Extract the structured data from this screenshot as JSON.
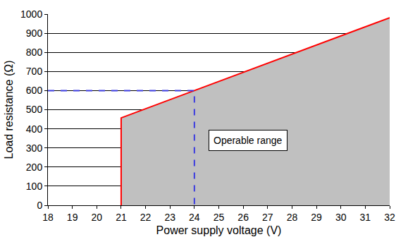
{
  "chart_data": {
    "type": "area",
    "x_label": "Power supply voltage (V)",
    "y_label": "Load resistance (Ω)",
    "x": [
      21,
      21,
      24,
      32
    ],
    "values": [
      0,
      457,
      600,
      981
    ],
    "color": "#ff0000",
    "xlim": [
      18,
      32
    ],
    "xticks": [
      18,
      19,
      20,
      21,
      22,
      23,
      24,
      25,
      26,
      27,
      28,
      29,
      30,
      31,
      32
    ],
    "ylim": [
      0,
      1000
    ],
    "yticks": [
      0,
      100,
      200,
      300,
      400,
      500,
      600,
      700,
      800,
      900,
      1000
    ],
    "grid": true,
    "reference": {
      "x": 24,
      "y": 600,
      "color": "#3a3adf",
      "line_style": "dash"
    },
    "annotations": [
      "Operable range"
    ]
  }
}
